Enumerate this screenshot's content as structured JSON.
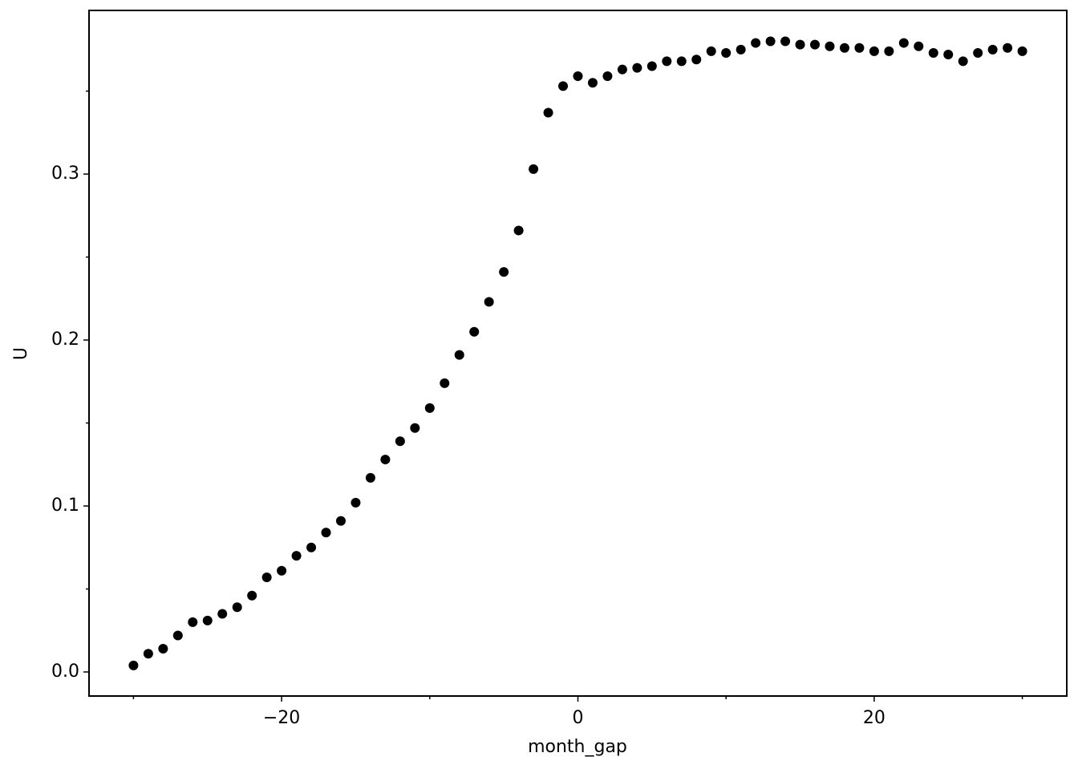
{
  "chart_data": {
    "type": "scatter",
    "xlabel": "month_gap",
    "ylabel": "U",
    "x": [
      -30,
      -29,
      -28,
      -27,
      -26,
      -25,
      -24,
      -23,
      -22,
      -21,
      -20,
      -19,
      -18,
      -17,
      -16,
      -15,
      -14,
      -13,
      -12,
      -11,
      -10,
      -9,
      -8,
      -7,
      -6,
      -5,
      -4,
      -3,
      -2,
      -1,
      0,
      1,
      2,
      3,
      4,
      5,
      6,
      7,
      8,
      9,
      10,
      11,
      12,
      13,
      14,
      15,
      16,
      17,
      18,
      19,
      20,
      21,
      22,
      23,
      24,
      25,
      26,
      27,
      28,
      29,
      30
    ],
    "series": [
      {
        "color": "#000000",
        "values": [
          0.0039,
          0.011,
          0.014,
          0.022,
          0.03,
          0.031,
          0.035,
          0.039,
          0.046,
          0.057,
          0.061,
          0.07,
          0.075,
          0.084,
          0.091,
          0.102,
          0.117,
          0.128,
          0.139,
          0.147,
          0.159,
          0.174,
          0.191,
          0.205,
          0.223,
          0.241,
          0.266,
          0.303,
          0.337,
          0.353,
          0.359,
          0.355,
          0.359,
          0.363,
          0.364,
          0.365,
          0.368,
          0.368,
          0.369,
          0.374,
          0.373,
          0.375,
          0.379,
          0.38,
          0.38,
          0.378,
          0.378,
          0.377,
          0.376,
          0.376,
          0.374,
          0.374,
          0.379,
          0.377,
          0.373,
          0.372,
          0.368,
          0.373,
          0.375,
          0.376,
          0.374
        ]
      }
    ],
    "xlim": [
      -33,
      33
    ],
    "ylim": [
      -0.0145,
      0.3986
    ],
    "xticks": [
      {
        "value": -20,
        "label": "−20"
      },
      0,
      20
    ],
    "xticks_minor": [
      -30,
      -10,
      10,
      30
    ],
    "yticks": [
      {
        "value": 0,
        "label": "0.0"
      },
      0.1,
      0.2,
      0.3
    ],
    "yticks_minor": [
      0.05,
      0.15,
      0.25,
      0.35
    ],
    "grid": false
  }
}
